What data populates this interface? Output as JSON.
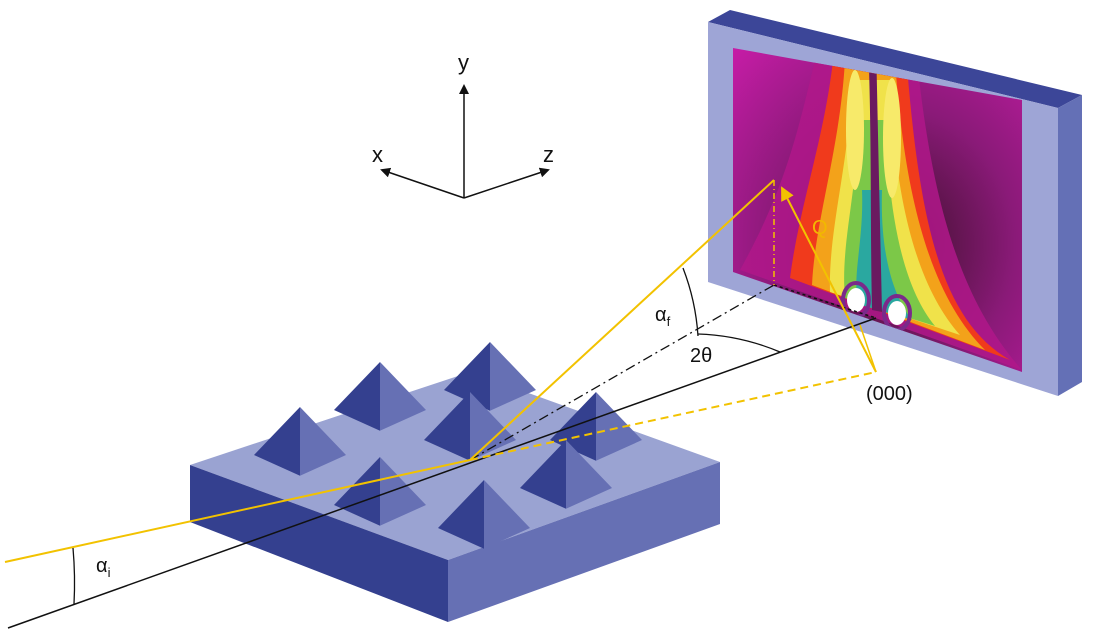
{
  "labels": {
    "axis_y": "y",
    "axis_x": "x",
    "axis_z": "z",
    "q_vector": "Q",
    "alpha_f": "α",
    "alpha_f_sub": "f",
    "two_theta": "2θ",
    "origin": "(000)",
    "alpha_i": "α",
    "alpha_i_sub": "i"
  },
  "colors": {
    "beam": "#f2c200",
    "substrate_top": "#9aa3d2",
    "substrate_front": "#34408f",
    "substrate_side": "#6670b4",
    "detector_frame_face": "#9ea5d6",
    "detector_frame_top": "#3c4698",
    "detector_frame_side": "#6470b6",
    "pattern_magenta": "#c01fa8",
    "pattern_red": "#f03a1c",
    "pattern_yellow": "#f0e24a",
    "pattern_green": "#5bc04a",
    "pattern_teal": "#2aa8a0"
  }
}
